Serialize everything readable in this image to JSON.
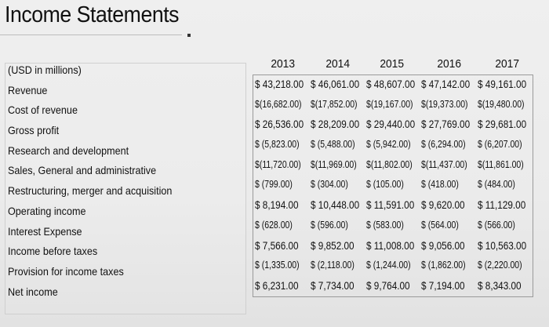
{
  "header": {
    "title": "Income Statements"
  },
  "table": {
    "unit_label": "(USD in millions)",
    "years": [
      "2013",
      "2014",
      "2015",
      "2016",
      "2017"
    ],
    "rows": [
      {
        "label": "Revenue",
        "values": [
          "$ 43,218.00",
          "$ 46,061.00",
          "$ 48,607.00",
          "$ 47,142.00",
          "$ 49,161.00"
        ]
      },
      {
        "label": "Cost of revenue",
        "values": [
          "$(16,682.00)",
          "$(17,852.00)",
          "$(19,167.00)",
          "$(19,373.00)",
          "$(19,480.00)"
        ]
      },
      {
        "label": "Gross profit",
        "values": [
          "$ 26,536.00",
          "$ 28,209.00",
          "$ 29,440.00",
          "$ 27,769.00",
          "$ 29,681.00"
        ]
      },
      {
        "label": "Research and development",
        "values": [
          "$ (5,823.00)",
          "$ (5,488.00)",
          "$ (5,942.00)",
          "$ (6,294.00)",
          "$ (6,207.00)"
        ]
      },
      {
        "label": "Sales, General and administrative",
        "values": [
          "$(11,720.00)",
          "$(11,969.00)",
          "$(11,802.00)",
          "$(11,437.00)",
          "$(11,861.00)"
        ]
      },
      {
        "label": "Restructuring, merger and acquisition",
        "values": [
          "$   (799.00)",
          "$   (304.00)",
          "$   (105.00)",
          "$   (418.00)",
          "$   (484.00)"
        ]
      },
      {
        "label": "Operating income",
        "values": [
          "$ 8,194.00",
          "$ 10,448.00",
          "$ 11,591.00",
          "$ 9,620.00",
          "$ 11,129.00"
        ]
      },
      {
        "label": "Interest Expense",
        "values": [
          "$   (628.00)",
          "$   (596.00)",
          "$   (583.00)",
          "$   (564.00)",
          "$   (566.00)"
        ]
      },
      {
        "label": "Income before taxes",
        "values": [
          "$ 7,566.00",
          "$ 9,852.00",
          "$ 11,008.00",
          "$ 9,056.00",
          "$ 10,563.00"
        ]
      },
      {
        "label": "Provision for income taxes",
        "values": [
          "$ (1,335.00)",
          "$ (2,118.00)",
          "$ (1,244.00)",
          "$ (1,862.00)",
          "$ (2,220.00)"
        ]
      },
      {
        "label": "Net income",
        "values": [
          "$ 6,231.00",
          "$ 7,734.00",
          "$ 9,764.00",
          "$ 7,194.00",
          "$ 8,343.00"
        ]
      }
    ]
  }
}
